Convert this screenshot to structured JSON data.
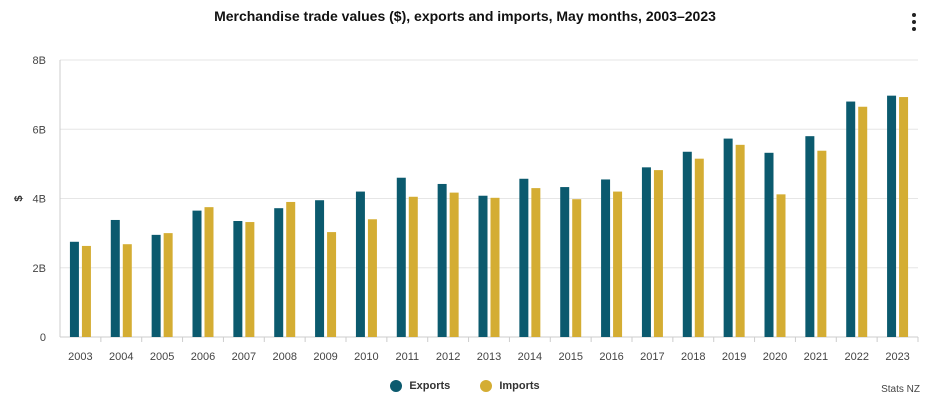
{
  "title": "Merchandise trade values ($), exports and imports, May months, 2003–2023",
  "menu_icon": "vertical-ellipsis-icon",
  "credits": "Stats NZ",
  "legend": [
    {
      "label": "Exports",
      "color": "#0b5a6e"
    },
    {
      "label": "Imports",
      "color": "#d4ad33"
    }
  ],
  "chart_data": {
    "type": "bar",
    "title": "Merchandise trade values ($), exports and imports, May months, 2003–2023",
    "xlabel": "",
    "ylabel": "$",
    "ylim": [
      0,
      8
    ],
    "yticks": [
      0,
      2,
      4,
      6,
      8
    ],
    "ytick_labels": [
      "0",
      "2B",
      "4B",
      "6B",
      "8B"
    ],
    "grid": true,
    "legend_position": "bottom-center",
    "categories": [
      "2003",
      "2004",
      "2005",
      "2006",
      "2007",
      "2008",
      "2009",
      "2010",
      "2011",
      "2012",
      "2013",
      "2014",
      "2015",
      "2016",
      "2017",
      "2018",
      "2019",
      "2020",
      "2021",
      "2022",
      "2023"
    ],
    "series": [
      {
        "name": "Exports",
        "color": "#0b5a6e",
        "values": [
          2.75,
          3.38,
          2.95,
          3.65,
          3.35,
          3.72,
          3.95,
          4.2,
          4.6,
          4.42,
          4.08,
          4.57,
          4.33,
          4.55,
          4.9,
          5.35,
          5.73,
          5.32,
          5.8,
          6.8,
          6.97
        ]
      },
      {
        "name": "Imports",
        "color": "#d4ad33",
        "values": [
          2.63,
          2.68,
          3.0,
          3.75,
          3.32,
          3.9,
          3.03,
          3.4,
          4.05,
          4.17,
          4.02,
          4.3,
          3.98,
          4.2,
          4.82,
          5.15,
          5.55,
          4.12,
          5.38,
          6.65,
          6.93
        ]
      }
    ]
  }
}
